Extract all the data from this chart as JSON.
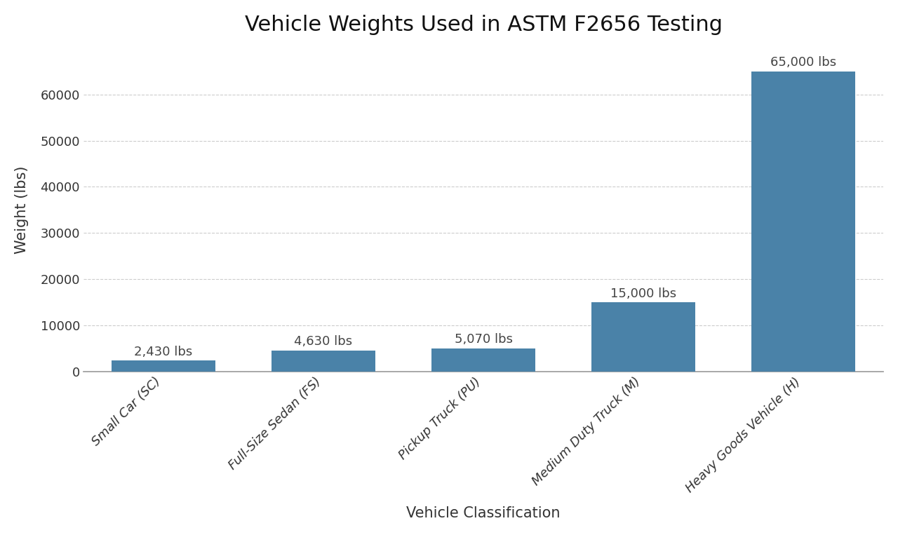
{
  "title": "Vehicle Weights Used in ASTM F2656 Testing",
  "xlabel": "Vehicle Classification",
  "ylabel": "Weight (lbs)",
  "categories": [
    "Small Car (SC)",
    "Full-Size Sedan (FS)",
    "Pickup Truck (PU)",
    "Medium Duty Truck (M)",
    "Heavy Goods Vehicle (H)"
  ],
  "values": [
    2430,
    4630,
    5070,
    15000,
    65000
  ],
  "labels": [
    "2,430 lbs",
    "4,630 lbs",
    "5,070 lbs",
    "15,000 lbs",
    "65,000 lbs"
  ],
  "bar_color": "#4a82a8",
  "background_color": "#ffffff",
  "ylim": [
    0,
    70000
  ],
  "yticks": [
    0,
    10000,
    20000,
    30000,
    40000,
    50000,
    60000
  ],
  "title_fontsize": 22,
  "label_fontsize": 15,
  "tick_fontsize": 13,
  "annotation_fontsize": 13,
  "bar_width": 0.65
}
